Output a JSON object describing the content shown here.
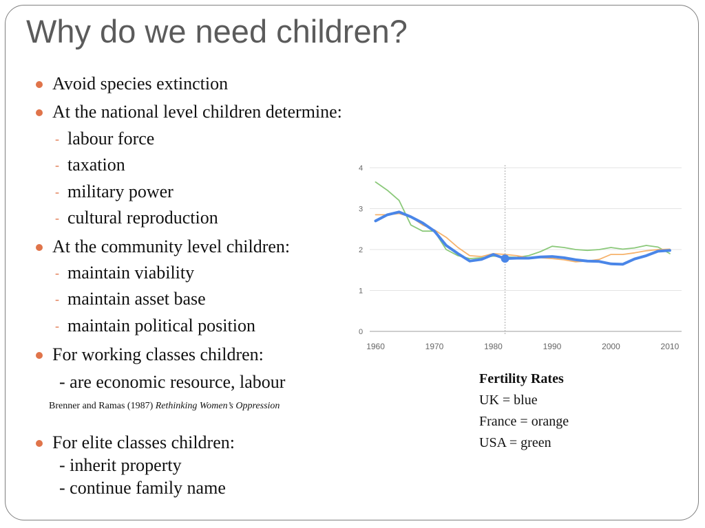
{
  "title": "Why do we need children?",
  "bullets": {
    "b1": "Avoid species extinction",
    "b2": "At the national level children determine:",
    "b2_subs": [
      "labour force",
      "taxation",
      "military power",
      "cultural reproduction"
    ],
    "b3": "At the community level children:",
    "b3_subs": [
      "maintain viability",
      "maintain asset base",
      "maintain political position"
    ],
    "b4": "For working classes children:",
    "b4_line": "- are economic resource, labour",
    "b5": "For elite classes children:",
    "b5_lines": [
      "- inherit property",
      "- continue family name"
    ],
    "dash": "-"
  },
  "citation": {
    "authors": "Brenner and Ramas (1987)",
    "work": "Rethinking Women’s Oppression"
  },
  "legend": {
    "heading": "Fertility Rates",
    "uk": "UK = blue",
    "france": "France = orange",
    "usa": "USA = green"
  },
  "colors": {
    "bullet": "#e0744a",
    "uk": "#4a86e8",
    "france": "#f6b26b",
    "usa": "#8bc97a"
  },
  "chart_data": {
    "type": "line",
    "x_ticks": [
      1960,
      1970,
      1980,
      1990,
      2000,
      2010
    ],
    "y_ticks": [
      0,
      1,
      2,
      3,
      4
    ],
    "xlim": [
      1959,
      2012
    ],
    "ylim": [
      0,
      4
    ],
    "grid": true,
    "highlight_x": 1982,
    "x": [
      1960,
      1962,
      1964,
      1966,
      1968,
      1970,
      1972,
      1974,
      1976,
      1978,
      1980,
      1982,
      1984,
      1986,
      1988,
      1990,
      1992,
      1994,
      1996,
      1998,
      2000,
      2002,
      2004,
      2006,
      2008,
      2010
    ],
    "series": [
      {
        "key": "uk",
        "values": [
          2.7,
          2.85,
          2.92,
          2.8,
          2.65,
          2.45,
          2.1,
          1.9,
          1.72,
          1.76,
          1.88,
          1.78,
          1.79,
          1.79,
          1.82,
          1.83,
          1.8,
          1.75,
          1.72,
          1.71,
          1.65,
          1.64,
          1.77,
          1.85,
          1.96,
          1.98
        ]
      },
      {
        "key": "france",
        "values": [
          2.85,
          2.85,
          2.88,
          2.8,
          2.6,
          2.48,
          2.3,
          2.05,
          1.85,
          1.83,
          1.9,
          1.88,
          1.85,
          1.8,
          1.8,
          1.78,
          1.75,
          1.7,
          1.72,
          1.76,
          1.88,
          1.88,
          1.92,
          1.97,
          2.0,
          2.01
        ]
      },
      {
        "key": "usa",
        "values": [
          3.65,
          3.45,
          3.2,
          2.6,
          2.45,
          2.45,
          2.0,
          1.85,
          1.78,
          1.8,
          1.84,
          1.82,
          1.81,
          1.85,
          1.95,
          2.08,
          2.05,
          2.0,
          1.98,
          2.0,
          2.05,
          2.01,
          2.04,
          2.1,
          2.06,
          1.9
        ]
      }
    ]
  }
}
